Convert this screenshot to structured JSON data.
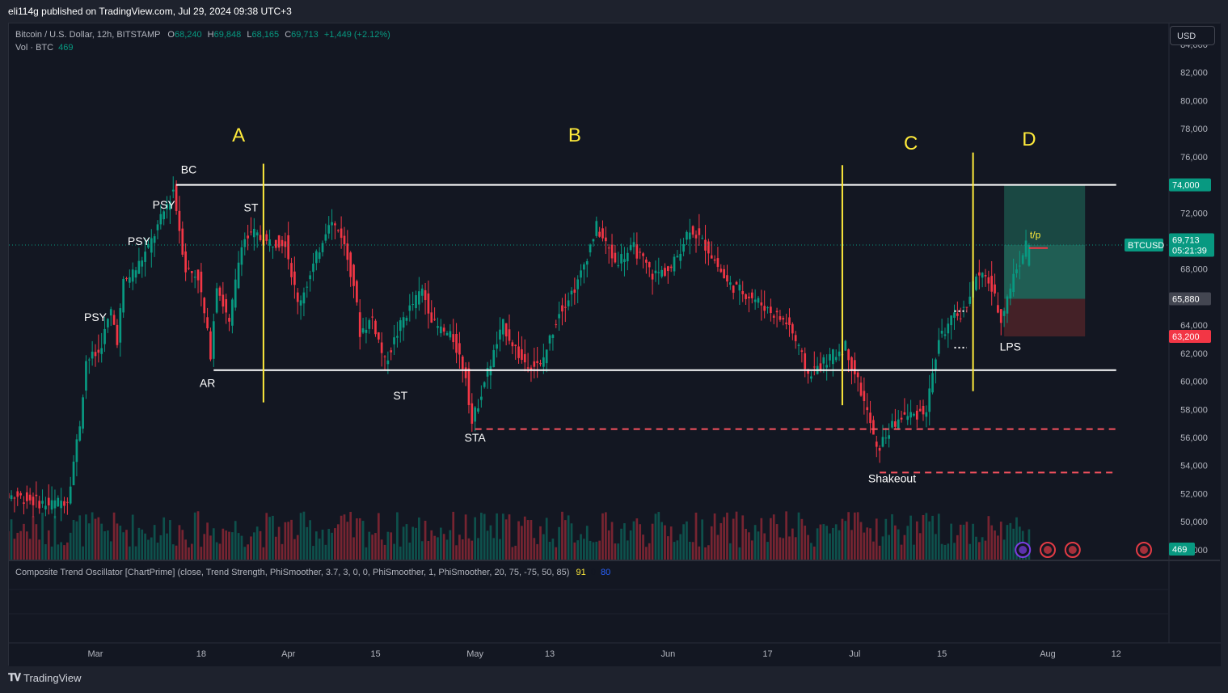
{
  "header": {
    "published": "eli114g published on TradingView.com, Jul 29, 2024 09:38 UTC+3"
  },
  "legend": {
    "symbol": "Bitcoin / U.S. Dollar, 12h, BITSTAMP",
    "o_label": "O",
    "o": "68,240",
    "h_label": "H",
    "h": "69,848",
    "l_label": "L",
    "l": "68,165",
    "c_label": "C",
    "c": "69,713",
    "change": "+1,449 (+2.12%)",
    "vol_label": "Vol · BTC",
    "vol": "469"
  },
  "currency_button": "USD",
  "price_badges": {
    "symbol": "BTCUSD",
    "last": "69,713",
    "countdown": "05:21:39",
    "resistance": "74,000",
    "entry": "65,880",
    "stop": "63,200",
    "volume": "469"
  },
  "indicator": {
    "title": "Composite Trend Oscillator [ChartPrime] (close, Trend Strength, PhiSmoother, 3.7, 3, 0, 0, PhiSmoother, 1, PhiSmoother, 20, 75, -75, 50, 85)",
    "v1": "91",
    "v2": "0",
    "v3": "80"
  },
  "footer": {
    "brand": "TradingView"
  },
  "colors": {
    "up": "#089981",
    "down": "#f23645",
    "phase_line": "#ffeb3b",
    "level_line": "#ffffff",
    "support_dash": "#f7525f",
    "profit_zone": "#1e5a4f",
    "loss_zone": "#4e2328",
    "background": "#131722"
  },
  "chart_data": {
    "type": "candlestick",
    "title": "",
    "xlabel": "",
    "ylabel": "",
    "ylim": [
      47300,
      85500
    ],
    "y_ticks": [
      48000,
      50000,
      52000,
      54000,
      56000,
      58000,
      60000,
      62000,
      64000,
      66000,
      68000,
      70000,
      72000,
      74000,
      76000,
      78000,
      80000,
      82000,
      84000
    ],
    "x_ticks": [
      {
        "date": "2024-03-01",
        "label": "Mar"
      },
      {
        "date": "2024-03-18",
        "label": "18"
      },
      {
        "date": "2024-04-01",
        "label": "Apr"
      },
      {
        "date": "2024-04-15",
        "label": "15"
      },
      {
        "date": "2024-05-01",
        "label": "May"
      },
      {
        "date": "2024-05-13",
        "label": "13"
      },
      {
        "date": "2024-06-01",
        "label": "Jun"
      },
      {
        "date": "2024-06-17",
        "label": "17"
      },
      {
        "date": "2024-07-01",
        "label": "Jul"
      },
      {
        "date": "2024-07-15",
        "label": "15"
      },
      {
        "date": "2024-08-01",
        "label": "Aug"
      },
      {
        "date": "2024-08-12",
        "label": "12"
      }
    ],
    "x_range": [
      "2024-02-13",
      "2024-08-19"
    ],
    "price_path": [
      [
        "2024-02-13",
        52000
      ],
      [
        "2024-02-18",
        51800
      ],
      [
        "2024-02-23",
        51200
      ],
      [
        "2024-02-26",
        51600
      ],
      [
        "2024-02-28",
        57000
      ],
      [
        "2024-02-29",
        61500
      ],
      [
        "2024-03-02",
        62000
      ],
      [
        "2024-03-04",
        65000
      ],
      [
        "2024-03-05",
        63000
      ],
      [
        "2024-03-06",
        67000
      ],
      [
        "2024-03-08",
        68000
      ],
      [
        "2024-03-10",
        69500
      ],
      [
        "2024-03-12",
        71500
      ],
      [
        "2024-03-14",
        73700
      ],
      [
        "2024-03-16",
        68000
      ],
      [
        "2024-03-18",
        67500
      ],
      [
        "2024-03-20",
        62000
      ],
      [
        "2024-03-21",
        67000
      ],
      [
        "2024-03-23",
        64000
      ],
      [
        "2024-03-25",
        70000
      ],
      [
        "2024-03-27",
        70500
      ],
      [
        "2024-03-29",
        69900
      ],
      [
        "2024-04-01",
        70000
      ],
      [
        "2024-04-03",
        65500
      ],
      [
        "2024-04-05",
        67500
      ],
      [
        "2024-04-08",
        71500
      ],
      [
        "2024-04-10",
        70500
      ],
      [
        "2024-04-12",
        67000
      ],
      [
        "2024-04-13",
        63500
      ],
      [
        "2024-04-15",
        64500
      ],
      [
        "2024-04-17",
        61300
      ],
      [
        "2024-04-20",
        64500
      ],
      [
        "2024-04-23",
        66500
      ],
      [
        "2024-04-25",
        64000
      ],
      [
        "2024-04-28",
        63000
      ],
      [
        "2024-04-30",
        60500
      ],
      [
        "2024-05-01",
        57000
      ],
      [
        "2024-05-03",
        60000
      ],
      [
        "2024-05-06",
        64000
      ],
      [
        "2024-05-09",
        61500
      ],
      [
        "2024-05-12",
        61000
      ],
      [
        "2024-05-15",
        65000
      ],
      [
        "2024-05-18",
        67000
      ],
      [
        "2024-05-21",
        71000
      ],
      [
        "2024-05-24",
        68500
      ],
      [
        "2024-05-27",
        69500
      ],
      [
        "2024-05-30",
        67600
      ],
      [
        "2024-06-02",
        68000
      ],
      [
        "2024-06-05",
        71000
      ],
      [
        "2024-06-08",
        69400
      ],
      [
        "2024-06-11",
        67000
      ],
      [
        "2024-06-13",
        66500
      ],
      [
        "2024-06-15",
        66000
      ],
      [
        "2024-06-18",
        65000
      ],
      [
        "2024-06-21",
        64000
      ],
      [
        "2024-06-24",
        60500
      ],
      [
        "2024-06-27",
        61500
      ],
      [
        "2024-06-30",
        62500
      ],
      [
        "2024-07-02",
        60000
      ],
      [
        "2024-07-04",
        57000
      ],
      [
        "2024-07-05",
        55000
      ],
      [
        "2024-07-07",
        56500
      ],
      [
        "2024-07-09",
        57500
      ],
      [
        "2024-07-11",
        57600
      ],
      [
        "2024-07-13",
        58000
      ],
      [
        "2024-07-15",
        63000
      ],
      [
        "2024-07-17",
        64300
      ],
      [
        "2024-07-19",
        65000
      ],
      [
        "2024-07-21",
        67500
      ],
      [
        "2024-07-23",
        67200
      ],
      [
        "2024-07-25",
        64500
      ],
      [
        "2024-07-27",
        67500
      ],
      [
        "2024-07-29",
        69713
      ]
    ],
    "levels": [
      {
        "price": 74000,
        "from": "2024-03-14",
        "to": "2024-08-12",
        "style": "solid"
      },
      {
        "price": 60800,
        "from": "2024-03-20",
        "to": "2024-08-12",
        "style": "solid"
      },
      {
        "price": 56600,
        "from": "2024-05-01",
        "to": "2024-08-12",
        "style": "dashed"
      },
      {
        "price": 53500,
        "from": "2024-07-05",
        "to": "2024-08-12",
        "style": "dashed"
      }
    ],
    "phase_lines": [
      {
        "date": "2024-03-28",
        "from": 58500,
        "to": 75500
      },
      {
        "date": "2024-06-29",
        "from": 58300,
        "to": 75400
      },
      {
        "date": "2024-07-20",
        "from": 59300,
        "to": 76300
      }
    ],
    "phase_labels": [
      {
        "text": "A",
        "date": "2024-03-24",
        "price": 77100
      },
      {
        "text": "B",
        "date": "2024-05-17",
        "price": 77100
      },
      {
        "text": "C",
        "date": "2024-07-10",
        "price": 76500
      },
      {
        "text": "D",
        "date": "2024-07-29",
        "price": 76800
      }
    ],
    "annotations": [
      {
        "text": "PSY",
        "date": "2024-03-01",
        "price": 64300
      },
      {
        "text": "PSY",
        "date": "2024-03-08",
        "price": 69700
      },
      {
        "text": "PSY",
        "date": "2024-03-12",
        "price": 72300
      },
      {
        "text": "BC",
        "date": "2024-03-16",
        "price": 74800
      },
      {
        "text": "ST",
        "date": "2024-03-26",
        "price": 72100
      },
      {
        "text": "AR",
        "date": "2024-03-19",
        "price": 59600
      },
      {
        "text": "ST",
        "date": "2024-04-19",
        "price": 58700
      },
      {
        "text": "STA",
        "date": "2024-05-01",
        "price": 55700
      },
      {
        "text": "Shakeout",
        "date": "2024-07-07",
        "price": 52800
      },
      {
        "text": "LPS",
        "date": "2024-07-26",
        "price": 62200
      }
    ],
    "position": {
      "from": "2024-07-25",
      "to": "2024-08-07",
      "entry": 65880,
      "target": 74000,
      "stop": 63200,
      "current": 69713,
      "label": "t/p"
    }
  }
}
